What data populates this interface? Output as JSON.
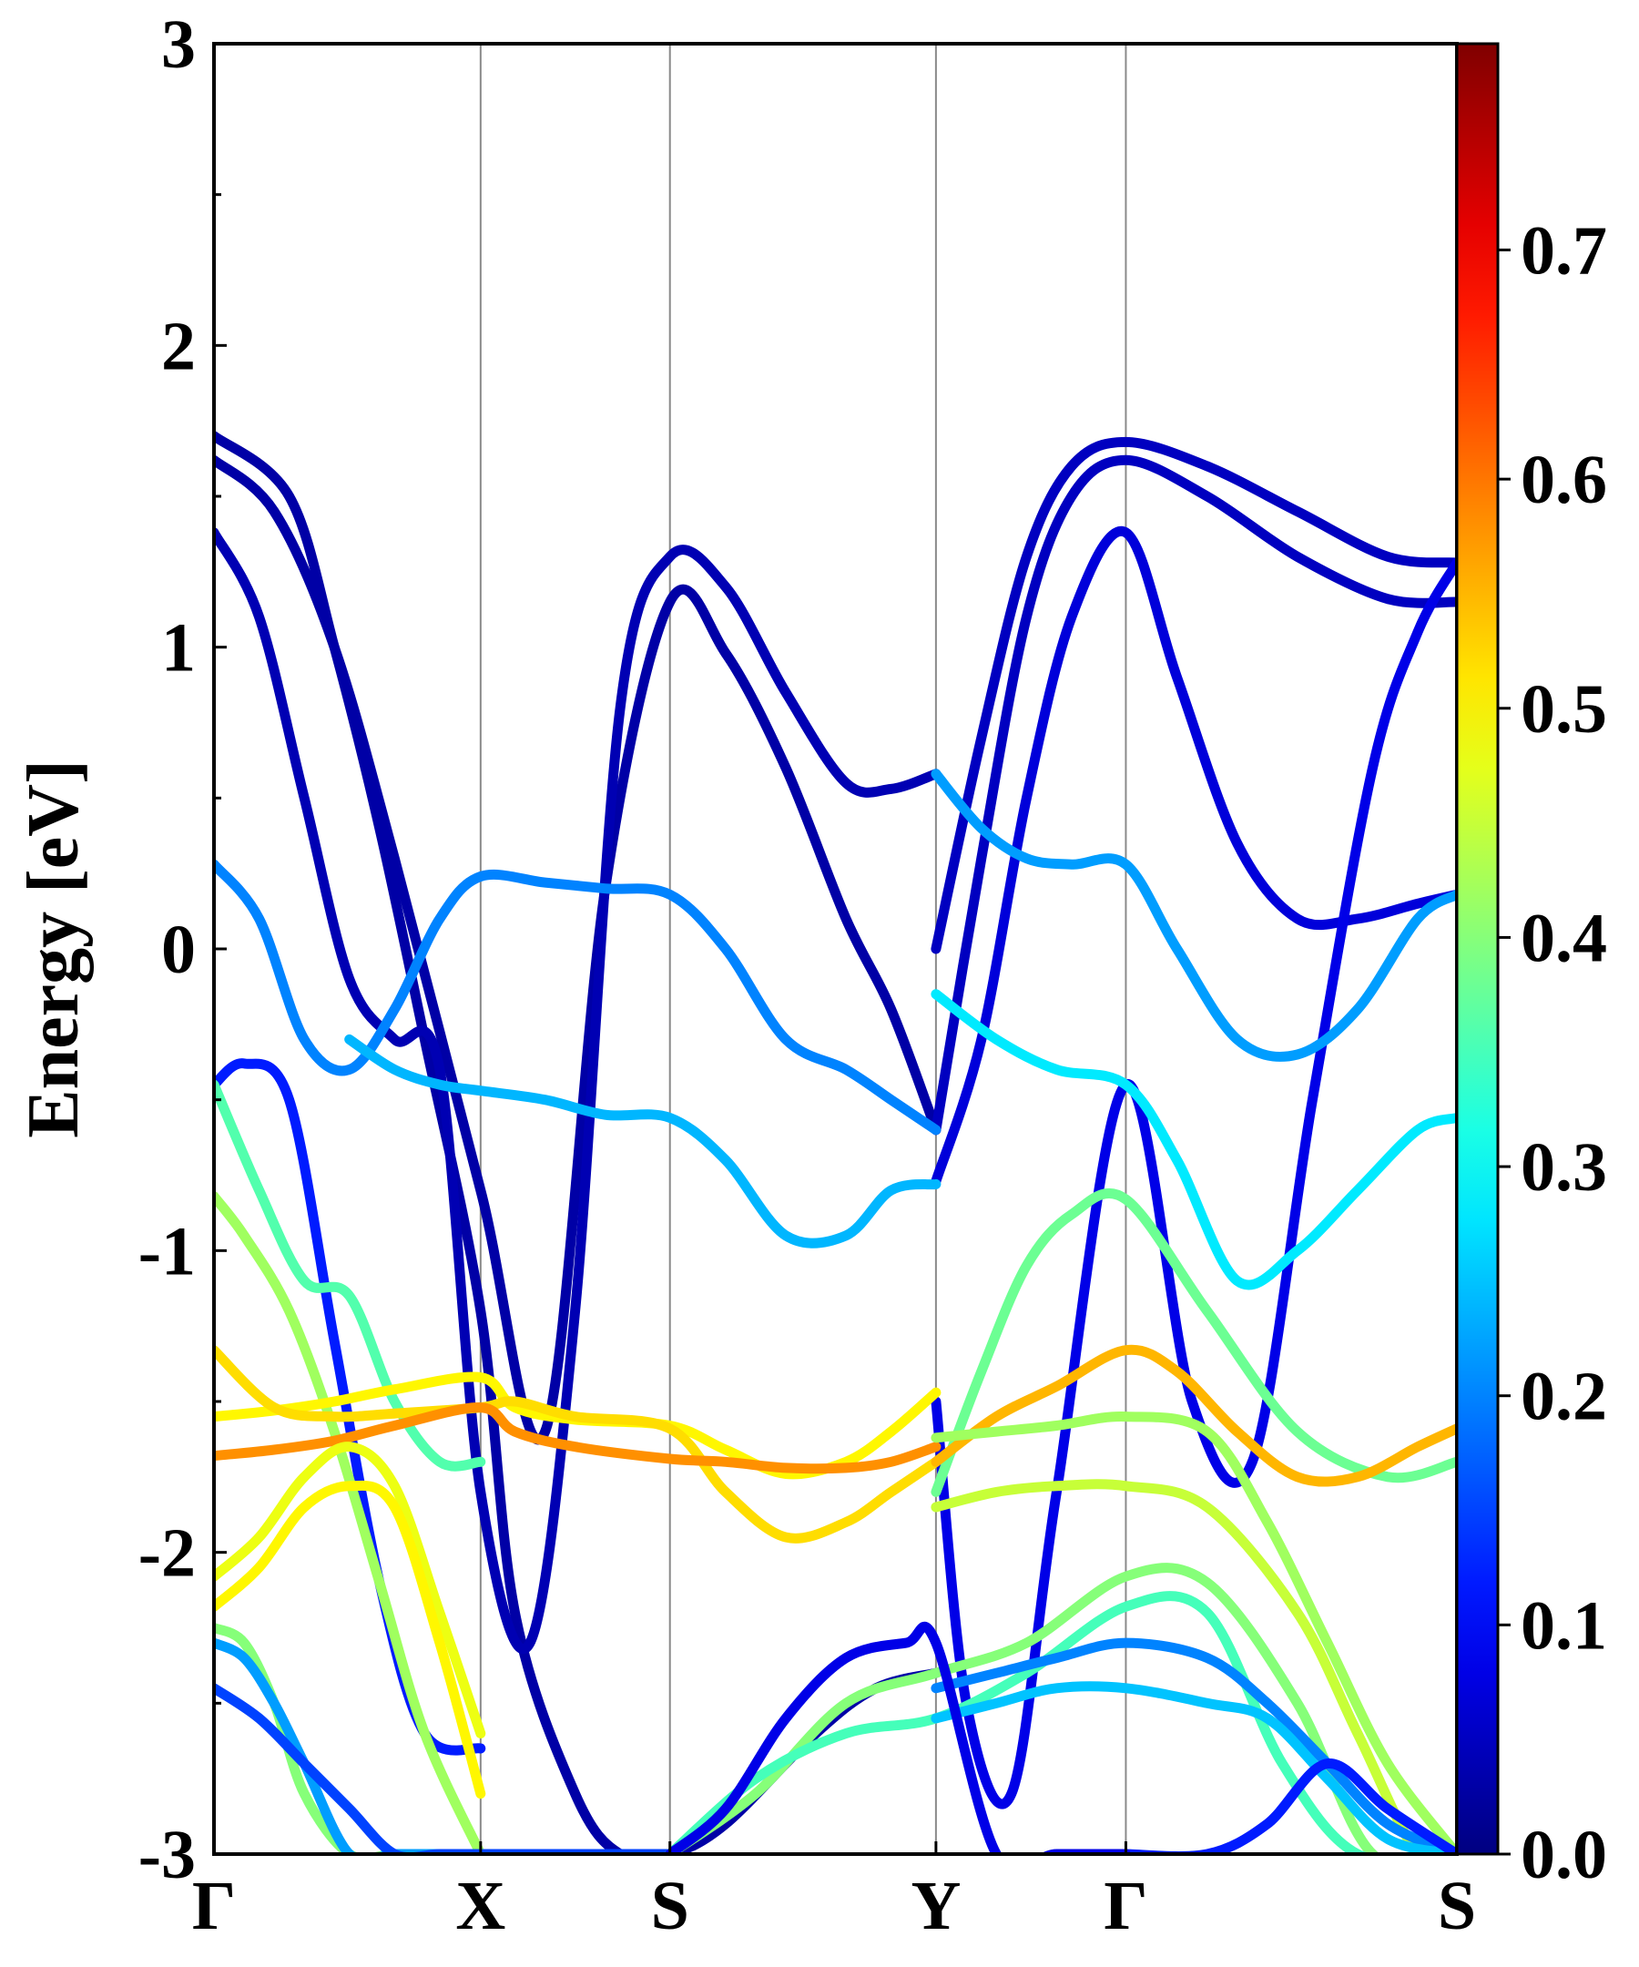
{
  "chart_data": {
    "type": "line",
    "title": "",
    "xlabel": "",
    "ylabel": "Energy [eV]",
    "ylim": [
      -3,
      3
    ],
    "yticks": [
      "3",
      "2",
      "1",
      "0",
      "-1",
      "-2",
      "-3"
    ],
    "kpath": [
      "Γ",
      "X",
      "S",
      "Y",
      "Γ",
      "S"
    ],
    "kpath_positions": [
      0,
      0.886,
      1.515,
      2.399,
      3.03,
      4.13
    ],
    "grid": "vertical lines at high-symmetry points",
    "colorbar": {
      "colormap": "jet",
      "range": [
        0,
        0.79
      ],
      "ticks": [
        "0.0",
        "0.1",
        "0.2",
        "0.3",
        "0.4",
        "0.5",
        "0.6",
        "0.7"
      ],
      "placement": "right"
    },
    "series": [
      {
        "color_value": 0.03,
        "k": [
          0,
          0.25,
          0.4,
          0.55,
          0.7,
          0.886,
          1.0,
          1.2,
          1.35,
          1.515,
          1.7,
          2.0,
          2.2,
          2.399
        ],
        "e": [
          1.7,
          1.5,
          1.0,
          0.4,
          -0.3,
          -1.2,
          -2.2,
          -2.8,
          -3.0,
          -3.0,
          -2.9,
          -2.6,
          -2.45,
          -2.4
        ]
      },
      {
        "color_value": 0.03,
        "k": [
          0,
          0.2,
          0.4,
          0.6,
          0.886,
          1.1,
          1.3,
          1.515,
          1.7,
          1.9,
          2.1,
          2.25,
          2.399
        ],
        "e": [
          1.62,
          1.45,
          1.0,
          0.3,
          -0.8,
          -1.6,
          0.2,
          1.15,
          0.98,
          0.6,
          0.1,
          -0.2,
          -0.6
        ]
      },
      {
        "color_value": 0.04,
        "k": [
          0,
          0.15,
          0.3,
          0.45,
          0.6,
          0.75,
          0.886,
          1.05,
          1.2,
          1.35,
          1.515,
          1.7,
          1.9,
          2.1,
          2.25,
          2.399
        ],
        "e": [
          1.38,
          1.1,
          0.5,
          -0.1,
          -0.3,
          -0.4,
          -1.8,
          -2.3,
          -1.2,
          0.8,
          1.3,
          1.2,
          0.85,
          0.55,
          0.53,
          0.58
        ]
      },
      {
        "color_value": 0.05,
        "k": [
          2.399,
          2.55,
          2.7,
          2.85,
          3.03,
          3.3,
          3.6,
          3.9,
          4.13
        ],
        "e": [
          0.0,
          0.7,
          1.3,
          1.6,
          1.68,
          1.6,
          1.45,
          1.3,
          1.28
        ]
      },
      {
        "color_value": 0.05,
        "k": [
          2.399,
          2.55,
          2.7,
          2.85,
          3.03,
          3.3,
          3.6,
          3.9,
          4.13
        ],
        "e": [
          -0.6,
          0.3,
          1.1,
          1.5,
          1.62,
          1.5,
          1.3,
          1.16,
          1.15
        ]
      },
      {
        "color_value": 0.07,
        "k": [
          2.399,
          2.55,
          2.7,
          2.85,
          3.03,
          3.2,
          3.4,
          3.6,
          3.8,
          4.0,
          4.13
        ],
        "e": [
          -0.77,
          -0.3,
          0.5,
          1.1,
          1.38,
          0.9,
          0.35,
          0.1,
          0.1,
          0.15,
          0.18
        ]
      },
      {
        "color_value": 0.08,
        "k": [
          2.399,
          2.5,
          2.65,
          2.8,
          3.03,
          3.25,
          3.45,
          3.65,
          3.85,
          4.0,
          4.13
        ],
        "e": [
          -1.5,
          -2.5,
          -2.8,
          -1.8,
          -0.45,
          -1.5,
          -1.7,
          -0.5,
          0.6,
          1.05,
          1.28
        ]
      },
      {
        "color_value": 0.12,
        "k": [
          0,
          0.1,
          0.25,
          0.4,
          0.55,
          0.7,
          0.886
        ],
        "e": [
          -0.45,
          -0.38,
          -0.5,
          -1.3,
          -2.1,
          -2.6,
          -2.65
        ]
      },
      {
        "color_value": 0.2,
        "k": [
          0,
          0.15,
          0.3,
          0.45,
          0.6,
          0.75,
          0.886,
          1.1,
          1.3,
          1.515,
          1.7,
          1.9,
          2.1,
          2.25,
          2.399
        ],
        "e": [
          0.28,
          0.1,
          -0.3,
          -0.4,
          -0.2,
          0.1,
          0.24,
          0.22,
          0.2,
          0.18,
          0.0,
          -0.3,
          -0.4,
          -0.5,
          -0.6
        ]
      },
      {
        "color_value": 0.22,
        "k": [
          2.399,
          2.55,
          2.7,
          2.85,
          3.03,
          3.2,
          3.4,
          3.6,
          3.8,
          4.0,
          4.13
        ],
        "e": [
          0.58,
          0.4,
          0.3,
          0.28,
          0.28,
          0.0,
          -0.3,
          -0.35,
          -0.2,
          0.1,
          0.18
        ]
      },
      {
        "color_value": 0.24,
        "k": [
          0.45,
          0.6,
          0.75,
          0.886,
          1.1,
          1.3,
          1.515,
          1.7,
          1.9,
          2.1,
          2.25,
          2.399
        ],
        "e": [
          -0.3,
          -0.4,
          -0.45,
          -0.47,
          -0.5,
          -0.55,
          -0.56,
          -0.7,
          -0.95,
          -0.95,
          -0.8,
          -0.78
        ]
      },
      {
        "color_value": 0.28,
        "k": [
          2.399,
          2.6,
          2.8,
          3.03,
          3.2,
          3.4,
          3.6,
          3.8,
          4.0,
          4.13
        ],
        "e": [
          -0.15,
          -0.3,
          -0.4,
          -0.45,
          -0.7,
          -1.1,
          -1.0,
          -0.8,
          -0.6,
          -0.56
        ]
      },
      {
        "color_value": 0.36,
        "k": [
          0,
          0.15,
          0.3,
          0.45,
          0.6,
          0.75,
          0.886
        ],
        "e": [
          -0.45,
          -0.8,
          -1.1,
          -1.15,
          -1.5,
          -1.7,
          -1.7
        ]
      },
      {
        "color_value": 0.42,
        "k": [
          0,
          0.1,
          0.25,
          0.4,
          0.55,
          0.7,
          0.886
        ],
        "e": [
          -0.82,
          -0.95,
          -1.2,
          -1.6,
          -2.1,
          -2.6,
          -3.0
        ]
      },
      {
        "color_value": 0.5,
        "k": [
          0,
          0.2,
          0.4,
          0.6,
          0.886,
          1.0,
          1.2,
          1.515,
          1.7,
          1.9,
          2.1,
          2.25,
          2.399
        ],
        "e": [
          -1.55,
          -1.53,
          -1.5,
          -1.46,
          -1.42,
          -1.52,
          -1.56,
          -1.58,
          -1.66,
          -1.74,
          -1.7,
          -1.6,
          -1.47
        ]
      },
      {
        "color_value": 0.52,
        "k": [
          0,
          0.2,
          0.4,
          0.6,
          0.886,
          1.0,
          1.2,
          1.515,
          1.7,
          1.9,
          2.1,
          2.25,
          2.399
        ],
        "e": [
          -1.33,
          -1.52,
          -1.55,
          -1.54,
          -1.52,
          -1.5,
          -1.55,
          -1.59,
          -1.8,
          -1.95,
          -1.9,
          -1.8,
          -1.7
        ]
      },
      {
        "color_value": 0.58,
        "k": [
          0,
          0.2,
          0.4,
          0.6,
          0.886,
          1.0,
          1.2,
          1.515,
          1.7,
          1.9,
          2.1,
          2.25,
          2.399
        ],
        "e": [
          -1.68,
          -1.66,
          -1.63,
          -1.58,
          -1.52,
          -1.6,
          -1.65,
          -1.69,
          -1.7,
          -1.72,
          -1.72,
          -1.7,
          -1.65
        ]
      },
      {
        "color_value": 0.48,
        "k": [
          0,
          0.15,
          0.3,
          0.45,
          0.6,
          0.75,
          0.886
        ],
        "e": [
          -2.08,
          -1.95,
          -1.75,
          -1.65,
          -1.78,
          -2.2,
          -2.6
        ]
      },
      {
        "color_value": 0.5,
        "k": [
          0,
          0.15,
          0.3,
          0.45,
          0.6,
          0.75,
          0.886
        ],
        "e": [
          -2.18,
          -2.05,
          -1.85,
          -1.78,
          -1.85,
          -2.3,
          -2.8
        ]
      },
      {
        "color_value": 0.4,
        "k": [
          0,
          0.1,
          0.2,
          0.3,
          0.45,
          0.6,
          0.75,
          0.886
        ],
        "e": [
          -2.25,
          -2.3,
          -2.5,
          -2.8,
          -3.0,
          -3.0,
          -3.0,
          -3.0
        ]
      },
      {
        "color_value": 0.22,
        "k": [
          0,
          0.1,
          0.2,
          0.3,
          0.45,
          0.6,
          0.75,
          0.886
        ],
        "e": [
          -2.3,
          -2.35,
          -2.5,
          -2.7,
          -3.0,
          -3.0,
          -3.0,
          -3.0
        ]
      },
      {
        "color_value": 0.15,
        "k": [
          0,
          0.15,
          0.3,
          0.45,
          0.6,
          0.75,
          0.886,
          1.1,
          1.3,
          1.515
        ],
        "e": [
          -2.45,
          -2.55,
          -2.7,
          -2.85,
          -3.0,
          -3.0,
          -3.0,
          -3.0,
          -3.0,
          -3.0
        ]
      },
      {
        "color_value": 0.38,
        "k": [
          2.399,
          2.55,
          2.7,
          2.85,
          3.03,
          3.3,
          3.6,
          3.9,
          4.13
        ],
        "e": [
          -1.8,
          -1.4,
          -1.05,
          -0.88,
          -0.83,
          -1.2,
          -1.6,
          -1.75,
          -1.7
        ]
      },
      {
        "color_value": 0.55,
        "k": [
          2.399,
          2.6,
          2.8,
          3.03,
          3.2,
          3.4,
          3.6,
          3.8,
          4.0,
          4.13
        ],
        "e": [
          -1.7,
          -1.55,
          -1.45,
          -1.33,
          -1.4,
          -1.6,
          -1.75,
          -1.75,
          -1.65,
          -1.59
        ]
      },
      {
        "color_value": 0.42,
        "k": [
          2.399,
          2.6,
          2.8,
          3.03,
          3.3,
          3.5,
          3.7,
          3.9,
          4.13
        ],
        "e": [
          -1.62,
          -1.6,
          -1.58,
          -1.55,
          -1.6,
          -1.9,
          -2.3,
          -2.7,
          -3.0
        ]
      },
      {
        "color_value": 0.45,
        "k": [
          2.399,
          2.6,
          2.8,
          3.03,
          3.3,
          3.6,
          3.8,
          4.0,
          4.13
        ],
        "e": [
          -1.85,
          -1.8,
          -1.78,
          -1.78,
          -1.85,
          -2.2,
          -2.6,
          -3.0,
          -3.0
        ]
      },
      {
        "color_value": 0.4,
        "k": [
          1.515,
          1.8,
          2.1,
          2.399,
          2.7,
          3.03,
          3.3,
          3.6,
          3.85,
          4.13
        ],
        "e": [
          -3.0,
          -2.8,
          -2.5,
          -2.4,
          -2.3,
          -2.08,
          -2.1,
          -2.5,
          -3.0,
          -3.0
        ]
      },
      {
        "color_value": 0.35,
        "k": [
          1.515,
          1.8,
          2.1,
          2.399,
          2.7,
          3.03,
          3.3,
          3.55,
          3.8,
          4.13
        ],
        "e": [
          -3.0,
          -2.75,
          -2.6,
          -2.55,
          -2.4,
          -2.18,
          -2.2,
          -2.7,
          -3.0,
          -3.0
        ]
      },
      {
        "color_value": 0.2,
        "k": [
          2.399,
          2.6,
          2.8,
          3.03,
          3.3,
          3.5,
          3.7,
          3.9,
          4.13
        ],
        "e": [
          -2.45,
          -2.4,
          -2.35,
          -2.3,
          -2.35,
          -2.5,
          -2.7,
          -2.9,
          -3.0
        ]
      },
      {
        "color_value": 0.25,
        "k": [
          2.399,
          2.6,
          2.8,
          3.03,
          3.3,
          3.5,
          3.7,
          3.9,
          4.13
        ],
        "e": [
          -2.55,
          -2.5,
          -2.45,
          -2.45,
          -2.5,
          -2.55,
          -2.75,
          -2.95,
          -3.0
        ]
      },
      {
        "color_value": 0.12,
        "k": [
          3.03,
          3.3,
          3.5,
          3.7,
          3.9,
          4.13
        ],
        "e": [
          -3.0,
          -3.0,
          -2.9,
          -2.7,
          -2.85,
          -3.0
        ]
      },
      {
        "color_value": 0.08,
        "k": [
          1.515,
          1.7,
          1.9,
          2.1,
          2.3,
          2.399,
          2.6,
          2.8,
          3.03
        ],
        "e": [
          -3.0,
          -2.85,
          -2.55,
          -2.35,
          -2.3,
          -2.3,
          -3.0,
          -3.0,
          -3.0
        ]
      }
    ]
  }
}
